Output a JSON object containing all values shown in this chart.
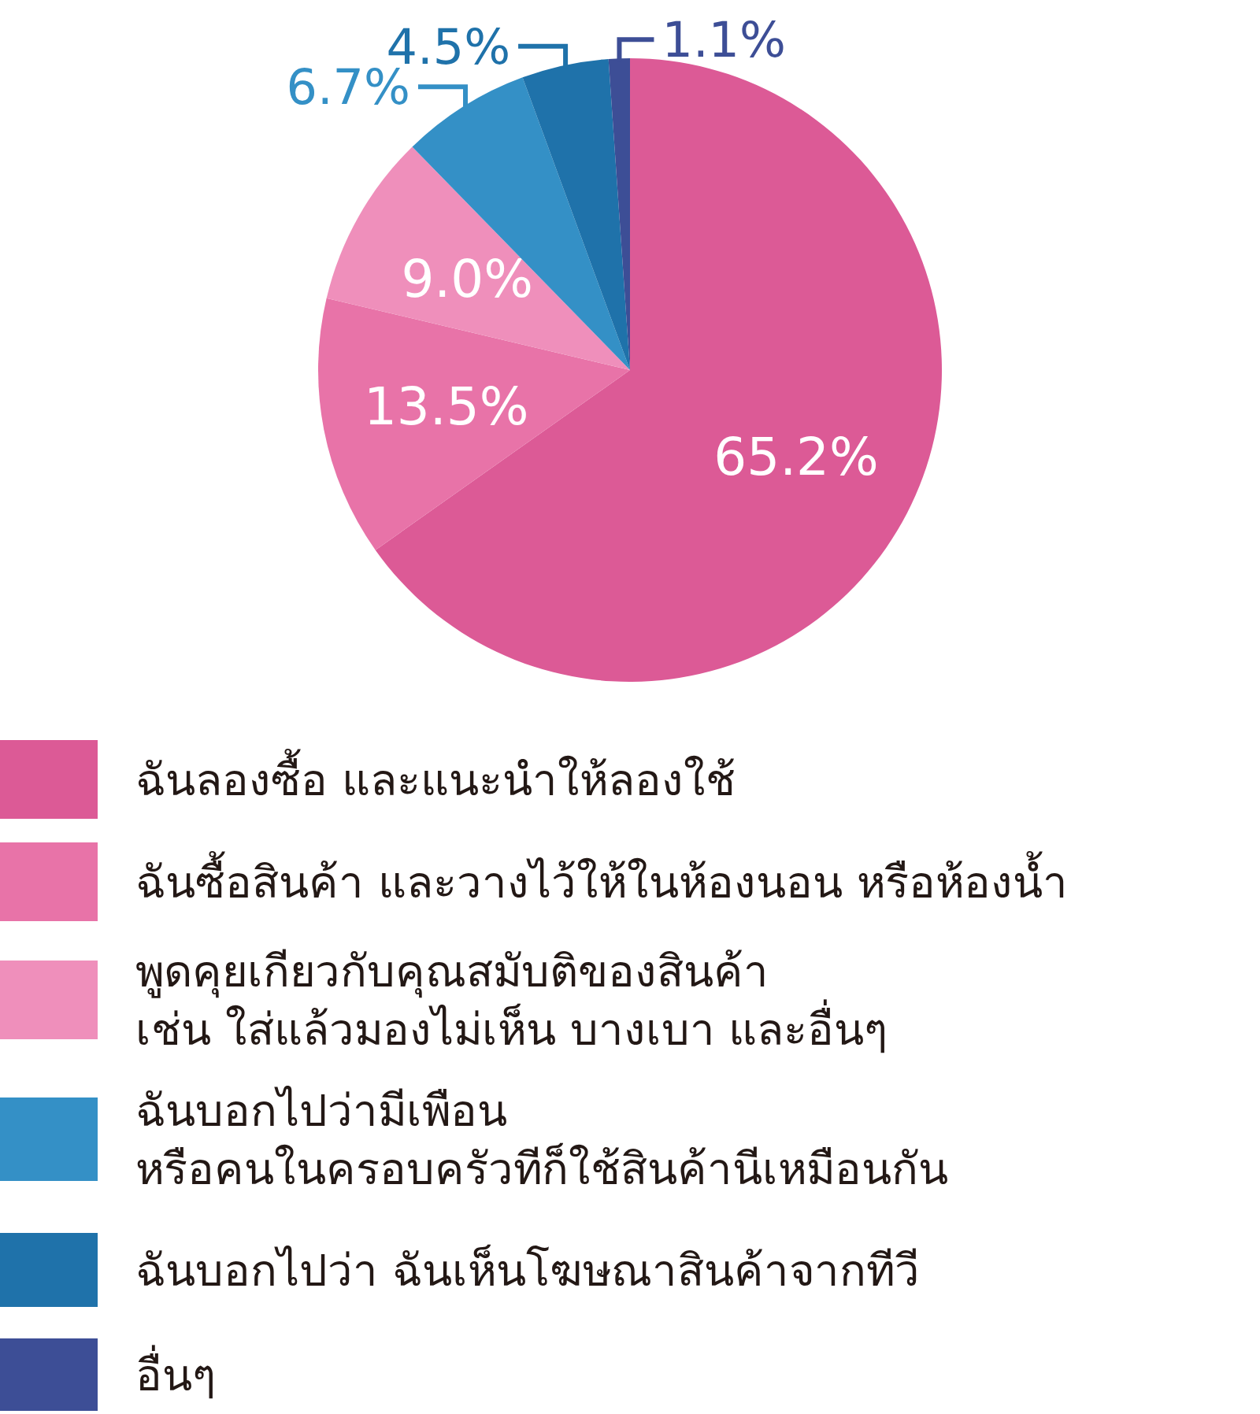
{
  "chart_data": {
    "type": "pie",
    "categories": [
      "ฉันลองซื้อ และแนะนำให้ลองใช้",
      "ฉันซื้อสินค้า และวางไว้ให้ในห้องนอน หรือห้องน้ำ",
      "พูดคุยเกียวกับคุณสมับติของสินค้า\nเช่น ใส่แล้วมองไม่เห็น บางเบา และอื่นๆ",
      "ฉันบอกไปว่ามีเพือน\nหรือคนในครอบครัวทีก็ใช้สินค้านีเหมือนกัน",
      "ฉันบอกไปว่า ฉันเห็นโฆษณาสินค้าจากทีวี",
      "อื่นๆ"
    ],
    "values": [
      65.2,
      13.5,
      9.0,
      6.7,
      4.5,
      1.1
    ],
    "value_labels": [
      "65.2%",
      "13.5%",
      "9.0%",
      "6.7%",
      "4.5%",
      "1.1%"
    ],
    "colors": [
      "#dc5a96",
      "#e873a8",
      "#ef8fbb",
      "#3490c6",
      "#1f72aa",
      "#3d4e96"
    ],
    "legend": "bottom"
  }
}
